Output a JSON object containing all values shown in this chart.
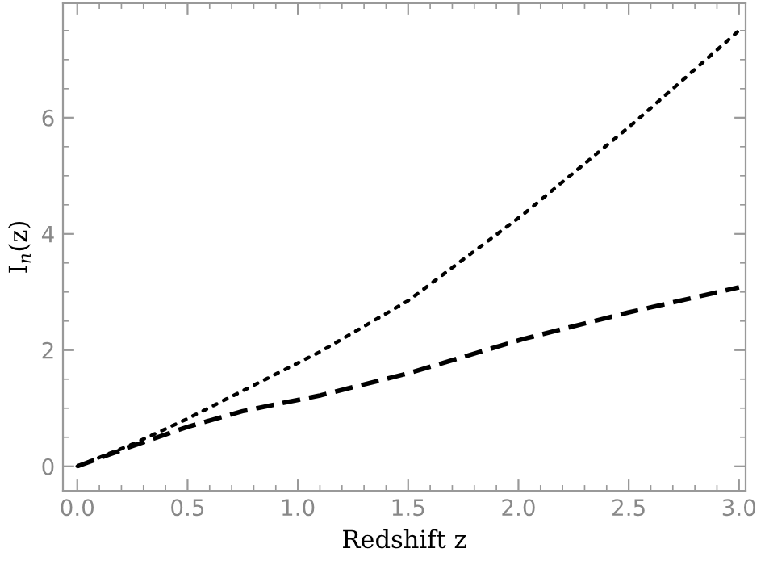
{
  "chart_data": {
    "type": "line",
    "xlabel": "Redshift z",
    "ylabel": "I$_{n}$(z)",
    "xlim": [
      -0.065,
      3.03
    ],
    "ylim": [
      -0.42,
      7.97
    ],
    "xticks": [
      {
        "value": 0,
        "label": "0.0"
      },
      {
        "value": 0.5,
        "label": "0.5"
      },
      {
        "value": 1,
        "label": "1.0"
      },
      {
        "value": 1.5,
        "label": "1.5"
      },
      {
        "value": 2,
        "label": "2.0"
      },
      {
        "value": 2.5,
        "label": "2.5"
      },
      {
        "value": 3,
        "label": "3.0"
      }
    ],
    "yticks": [
      0,
      2,
      4,
      6
    ],
    "grid": false,
    "legend": false,
    "series": [
      {
        "color": "#000000",
        "line_style": "dotted",
        "x": [
          0,
          0.25,
          0.5,
          0.75,
          1.1,
          1.5,
          2.02,
          2.52,
          3.0
        ],
        "values": [
          0,
          0.38,
          0.82,
          1.3,
          1.97,
          2.85,
          4.33,
          5.9,
          7.5
        ]
      },
      {
        "color": "#000000",
        "line_style": "dashed",
        "x": [
          0,
          0.25,
          0.5,
          0.75,
          1.1,
          1.5,
          2.02,
          2.5,
          3.0
        ],
        "values": [
          0,
          0.35,
          0.68,
          0.95,
          1.22,
          1.6,
          2.19,
          2.65,
          3.08
        ]
      }
    ]
  }
}
